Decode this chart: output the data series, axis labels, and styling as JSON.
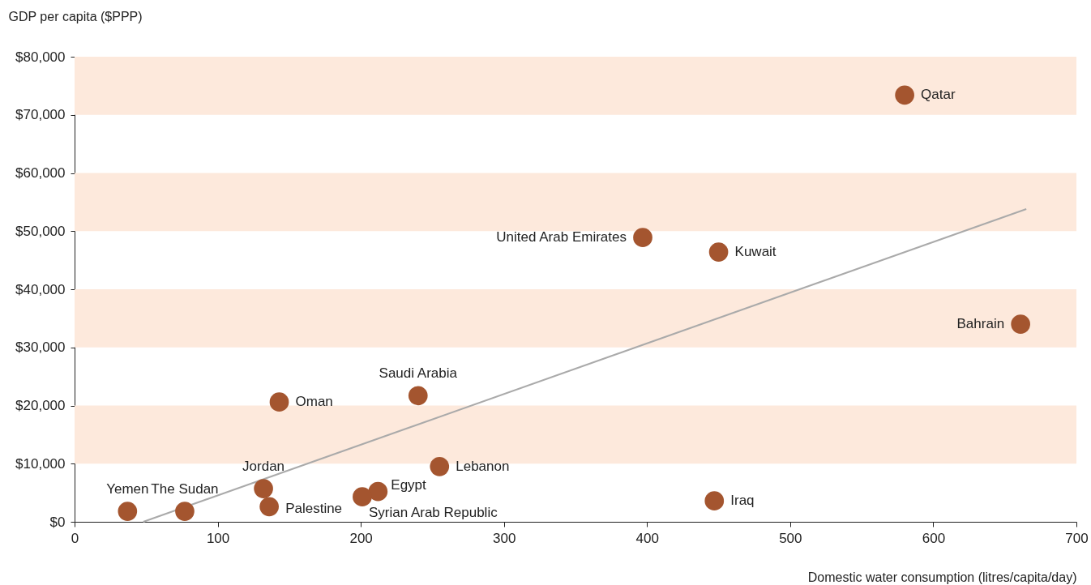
{
  "chart_data": {
    "type": "scatter",
    "xlabel": "Domestic water consumption (litres/capita/day)",
    "ylabel": "GDP per capita ($PPP)",
    "xlim": [
      0,
      700
    ],
    "xticks": [
      0,
      100,
      200,
      300,
      400,
      500,
      600,
      700
    ],
    "ylim": [
      0,
      80000
    ],
    "yticks": [
      {
        "value": 0,
        "label": "$0"
      },
      {
        "value": 10000,
        "label": "$10,000"
      },
      {
        "value": 20000,
        "label": "$20,000"
      },
      {
        "value": 30000,
        "label": "$30,000"
      },
      {
        "value": 40000,
        "label": "$40,000"
      },
      {
        "value": 50000,
        "label": "$50,000"
      },
      {
        "value": 60000,
        "label": "$60,000"
      },
      {
        "value": 70000,
        "label": "$70,000"
      },
      {
        "value": 80000,
        "label": "$80,000"
      }
    ],
    "grid": false,
    "series": [
      {
        "marker": "circle",
        "color": "#a4552f",
        "x": [
          580,
          397,
          450,
          661,
          240,
          143,
          255,
          132,
          212,
          201,
          447,
          136,
          77,
          37
        ],
        "values": [
          73400,
          48900,
          46400,
          34000,
          21700,
          20600,
          9500,
          5700,
          5200,
          4300,
          3600,
          2600,
          1800,
          1800
        ]
      },
      {
        "type": "line",
        "color": "#aaaaaa",
        "x": [
          48,
          665
        ],
        "values": [
          0,
          53800
        ]
      }
    ],
    "bands": [
      {
        "axis": "y",
        "from": 10000,
        "to": 20000,
        "color": "#fde9dc"
      },
      {
        "axis": "y",
        "from": 30000,
        "to": 40000,
        "color": "#fde9dc"
      },
      {
        "axis": "y",
        "from": 50000,
        "to": 60000,
        "color": "#fde9dc"
      },
      {
        "axis": "y",
        "from": 70000,
        "to": 80000,
        "color": "#fde9dc"
      }
    ],
    "annotations": [
      {
        "text": "Qatar",
        "x": 580,
        "y": 73400
      },
      {
        "text": "United Arab Emirates",
        "x": 397,
        "y": 48900
      },
      {
        "text": "Kuwait",
        "x": 450,
        "y": 46400
      },
      {
        "text": "Bahrain",
        "x": 661,
        "y": 34000
      },
      {
        "text": "Saudi Arabia",
        "x": 240,
        "y": 21700
      },
      {
        "text": "Oman",
        "x": 143,
        "y": 20600
      },
      {
        "text": "Lebanon",
        "x": 255,
        "y": 9500
      },
      {
        "text": "Jordan",
        "x": 132,
        "y": 5700
      },
      {
        "text": "Egypt",
        "x": 212,
        "y": 5200
      },
      {
        "text": "Syrian Arab Republic",
        "x": 201,
        "y": 4300
      },
      {
        "text": "Iraq",
        "x": 447,
        "y": 3600
      },
      {
        "text": "Palestine",
        "x": 136,
        "y": 2600
      },
      {
        "text": "The Sudan",
        "x": 77,
        "y": 1800
      },
      {
        "text": "Yemen",
        "x": 37,
        "y": 1800
      }
    ]
  }
}
